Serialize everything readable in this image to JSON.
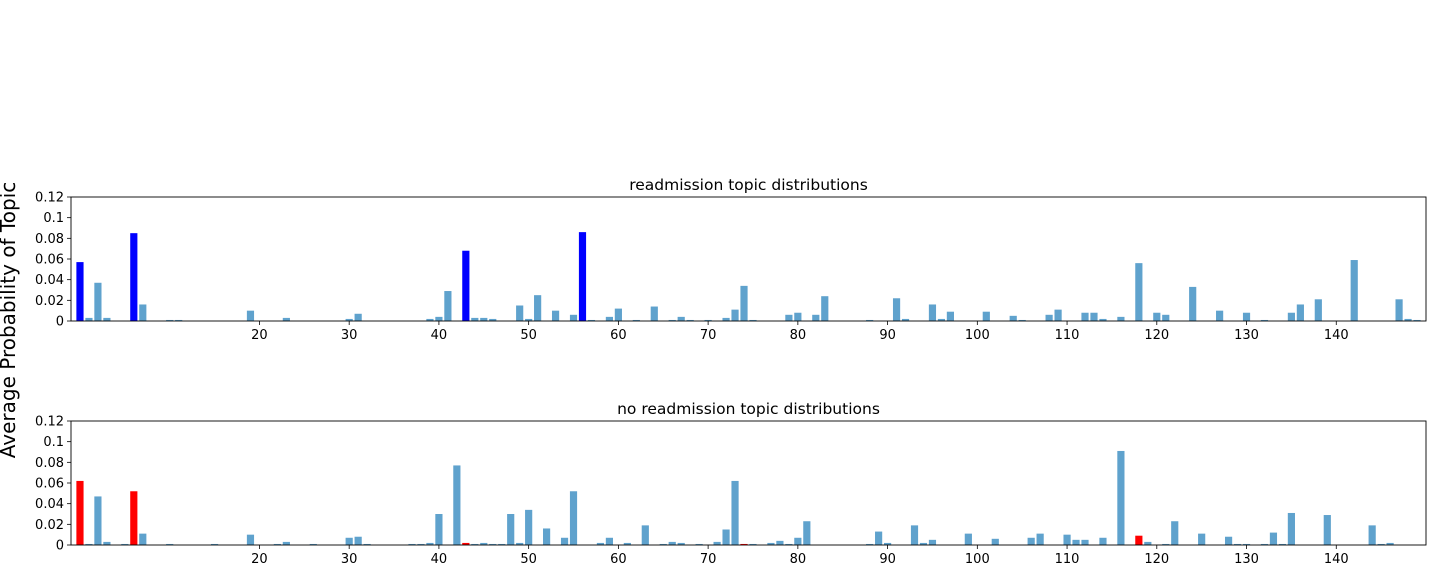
{
  "figure": {
    "ylabel": "Average Probability of Topic"
  },
  "chart_data": [
    {
      "type": "bar",
      "title": "readmission topic distributions",
      "xlabel": "",
      "ylabel": "",
      "xlim": [
        -1,
        150
      ],
      "ylim": [
        0,
        0.12
      ],
      "yticks": [
        0,
        0.02,
        0.04,
        0.06,
        0.08,
        0.1,
        0.12
      ],
      "ytick_labels": [
        "0",
        "0.02",
        "0.04",
        "0.06",
        "0.08",
        "0.1",
        "0.12"
      ],
      "xticks": [
        20,
        30,
        40,
        50,
        60,
        70,
        80,
        90,
        100,
        110,
        120,
        130,
        140
      ],
      "base_color": "#5fa2cd",
      "highlight_color": "#0000ff",
      "highlight_indices": [
        0,
        6,
        43,
        56,
        141
      ],
      "values": [
        0.057,
        0.003,
        0.037,
        0.003,
        0,
        0,
        0.085,
        0.016,
        0,
        0,
        0.001,
        0.001,
        0,
        0,
        0,
        0,
        0,
        0,
        0,
        0.01,
        0,
        0,
        0,
        0.003,
        0,
        0,
        0,
        0,
        0,
        0,
        0.002,
        0.007,
        0,
        0,
        0,
        0,
        0,
        0,
        0,
        0.002,
        0.004,
        0.029,
        0,
        0.068,
        0.003,
        0.003,
        0.002,
        0,
        0,
        0.015,
        0.002,
        0.025,
        0,
        0.01,
        0,
        0.006,
        0.086,
        0.001,
        0,
        0.004,
        0.012,
        0,
        0.001,
        0,
        0.014,
        0,
        0.001,
        0.004,
        0.001,
        0,
        0.001,
        0,
        0.003,
        0.011,
        0.034,
        0.001,
        0,
        0,
        0,
        0.006,
        0.008,
        0,
        0.006,
        0.024,
        0,
        0,
        0,
        0,
        0.001,
        0,
        0,
        0.022,
        0.002,
        0,
        0,
        0.016,
        0.002,
        0.009,
        0,
        0,
        0,
        0.009,
        0,
        0,
        0.005,
        0.001,
        0,
        0,
        0.006,
        0.011,
        0,
        0,
        0.008,
        0.008,
        0.002,
        0,
        0.004,
        0,
        0.056,
        0,
        0.008,
        0.006,
        0,
        0,
        0.033,
        0,
        0,
        0.01,
        0,
        0,
        0.008,
        0,
        0.001,
        0,
        0,
        0.008,
        0.016,
        0,
        0.021,
        0,
        0,
        0,
        0.059,
        0,
        0,
        0,
        0,
        0.021,
        0.002,
        0.001
      ]
    },
    {
      "type": "bar",
      "title": "no readmission topic distributions",
      "xlabel": "",
      "ylabel": "",
      "xlim": [
        -1,
        150
      ],
      "ylim": [
        0,
        0.12
      ],
      "yticks": [
        0,
        0.02,
        0.04,
        0.06,
        0.08,
        0.1,
        0.12
      ],
      "ytick_labels": [
        "0",
        "0.02",
        "0.04",
        "0.06",
        "0.08",
        "0.1",
        "0.12"
      ],
      "xticks": [
        20,
        30,
        40,
        50,
        60,
        70,
        80,
        90,
        100,
        110,
        120,
        130,
        140
      ],
      "base_color": "#5fa2cd",
      "highlight_color": "#ff0000",
      "highlight_indices": [
        0,
        6,
        43,
        74,
        118
      ],
      "values": [
        0.062,
        0.001,
        0.047,
        0.003,
        0,
        0.001,
        0.052,
        0.011,
        0,
        0,
        0.001,
        0,
        0,
        0,
        0,
        0.001,
        0,
        0,
        0,
        0.01,
        0,
        0,
        0.001,
        0.003,
        0,
        0,
        0.001,
        0,
        0,
        0,
        0.007,
        0.008,
        0.001,
        0,
        0,
        0,
        0,
        0.001,
        0.001,
        0.002,
        0.03,
        0,
        0.077,
        0.002,
        0.001,
        0.002,
        0.001,
        0.001,
        0.03,
        0.002,
        0.034,
        0,
        0.016,
        0,
        0.007,
        0.052,
        0,
        0,
        0.002,
        0.007,
        0,
        0.002,
        0,
        0.019,
        0,
        0.001,
        0.003,
        0.002,
        0,
        0.001,
        0,
        0.003,
        0.015,
        0.062,
        0.001,
        0.001,
        0,
        0.002,
        0.004,
        0.001,
        0.007,
        0.023,
        0,
        0,
        0,
        0,
        0,
        0,
        0.001,
        0.013,
        0.002,
        0,
        0,
        0.019,
        0.002,
        0.005,
        0,
        0,
        0,
        0.011,
        0,
        0,
        0.006,
        0,
        0,
        0,
        0.007,
        0.011,
        0,
        0,
        0.01,
        0.005,
        0.005,
        0,
        0.007,
        0,
        0.091,
        0,
        0.009,
        0.003,
        0,
        0.001,
        0.023,
        0,
        0,
        0.011,
        0,
        0,
        0.008,
        0.001,
        0.001,
        0,
        0.001,
        0.012,
        0.001,
        0.031,
        0,
        0,
        0,
        0.029,
        0,
        0,
        0,
        0,
        0.019,
        0.001,
        0.002
      ]
    }
  ]
}
